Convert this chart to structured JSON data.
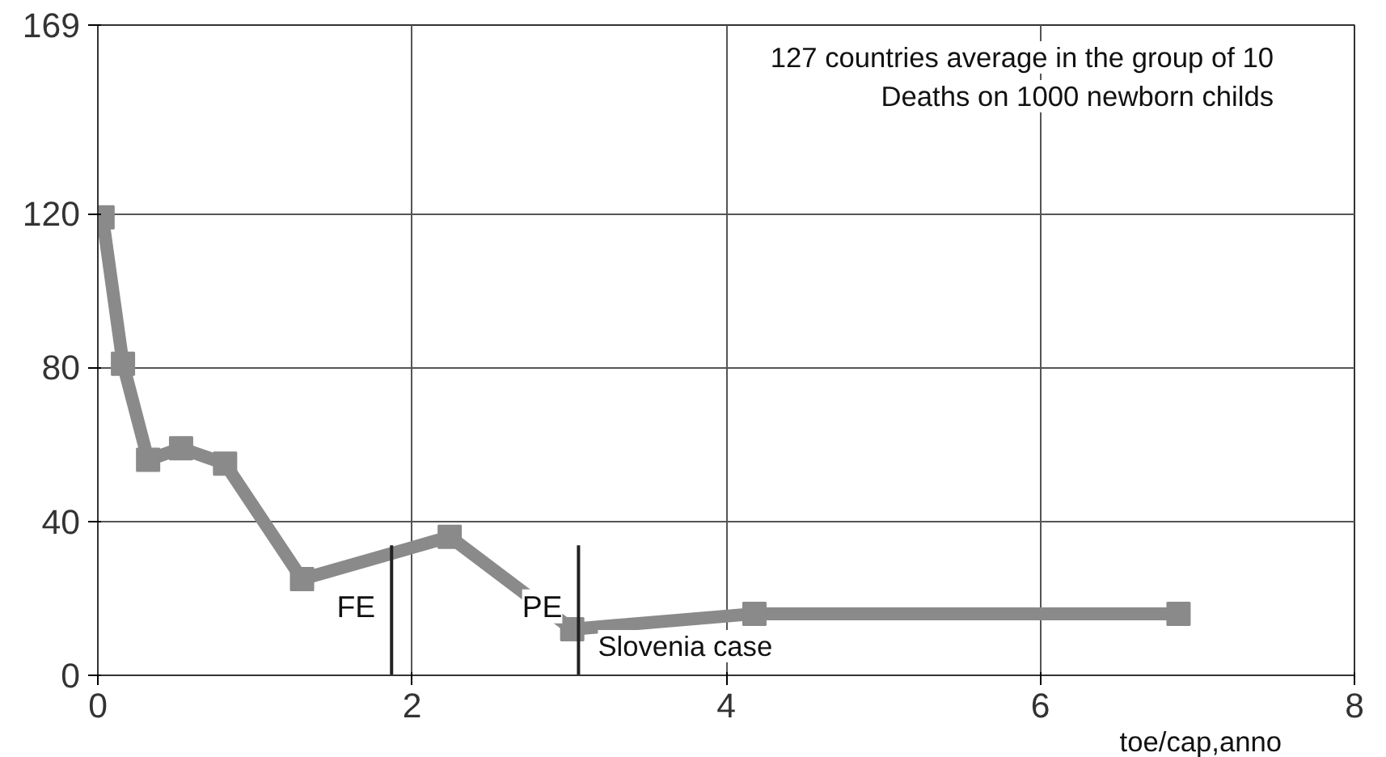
{
  "chart_data": {
    "type": "line",
    "annotations": [
      "127 countries average in the group of 10",
      "Deaths on 1000 newborn childs",
      "Slovenia case"
    ],
    "xlabel": "toe/cap,anno",
    "x": [
      0.03,
      0.16,
      0.32,
      0.53,
      0.81,
      1.3,
      2.24,
      3.02,
      4.18,
      6.88
    ],
    "series": [
      {
        "color": "#8a8a8a",
        "values": [
          119,
          81,
          56,
          59,
          55,
          25,
          36,
          12,
          16,
          16
        ]
      }
    ],
    "xlim": [
      0,
      8
    ],
    "ylim": [
      0,
      169
    ],
    "xticks": [
      0,
      2,
      4,
      6,
      8
    ],
    "yticks": [
      0,
      40,
      80,
      120,
      169
    ],
    "ref_lines": [
      {
        "axis": "x",
        "value": 1.87,
        "label": "FE",
        "color": "#222222"
      },
      {
        "axis": "x",
        "value": 3.06,
        "label": "PE",
        "color": "#222222"
      }
    ],
    "grid": true,
    "marker": "square",
    "line_style": "solid"
  }
}
